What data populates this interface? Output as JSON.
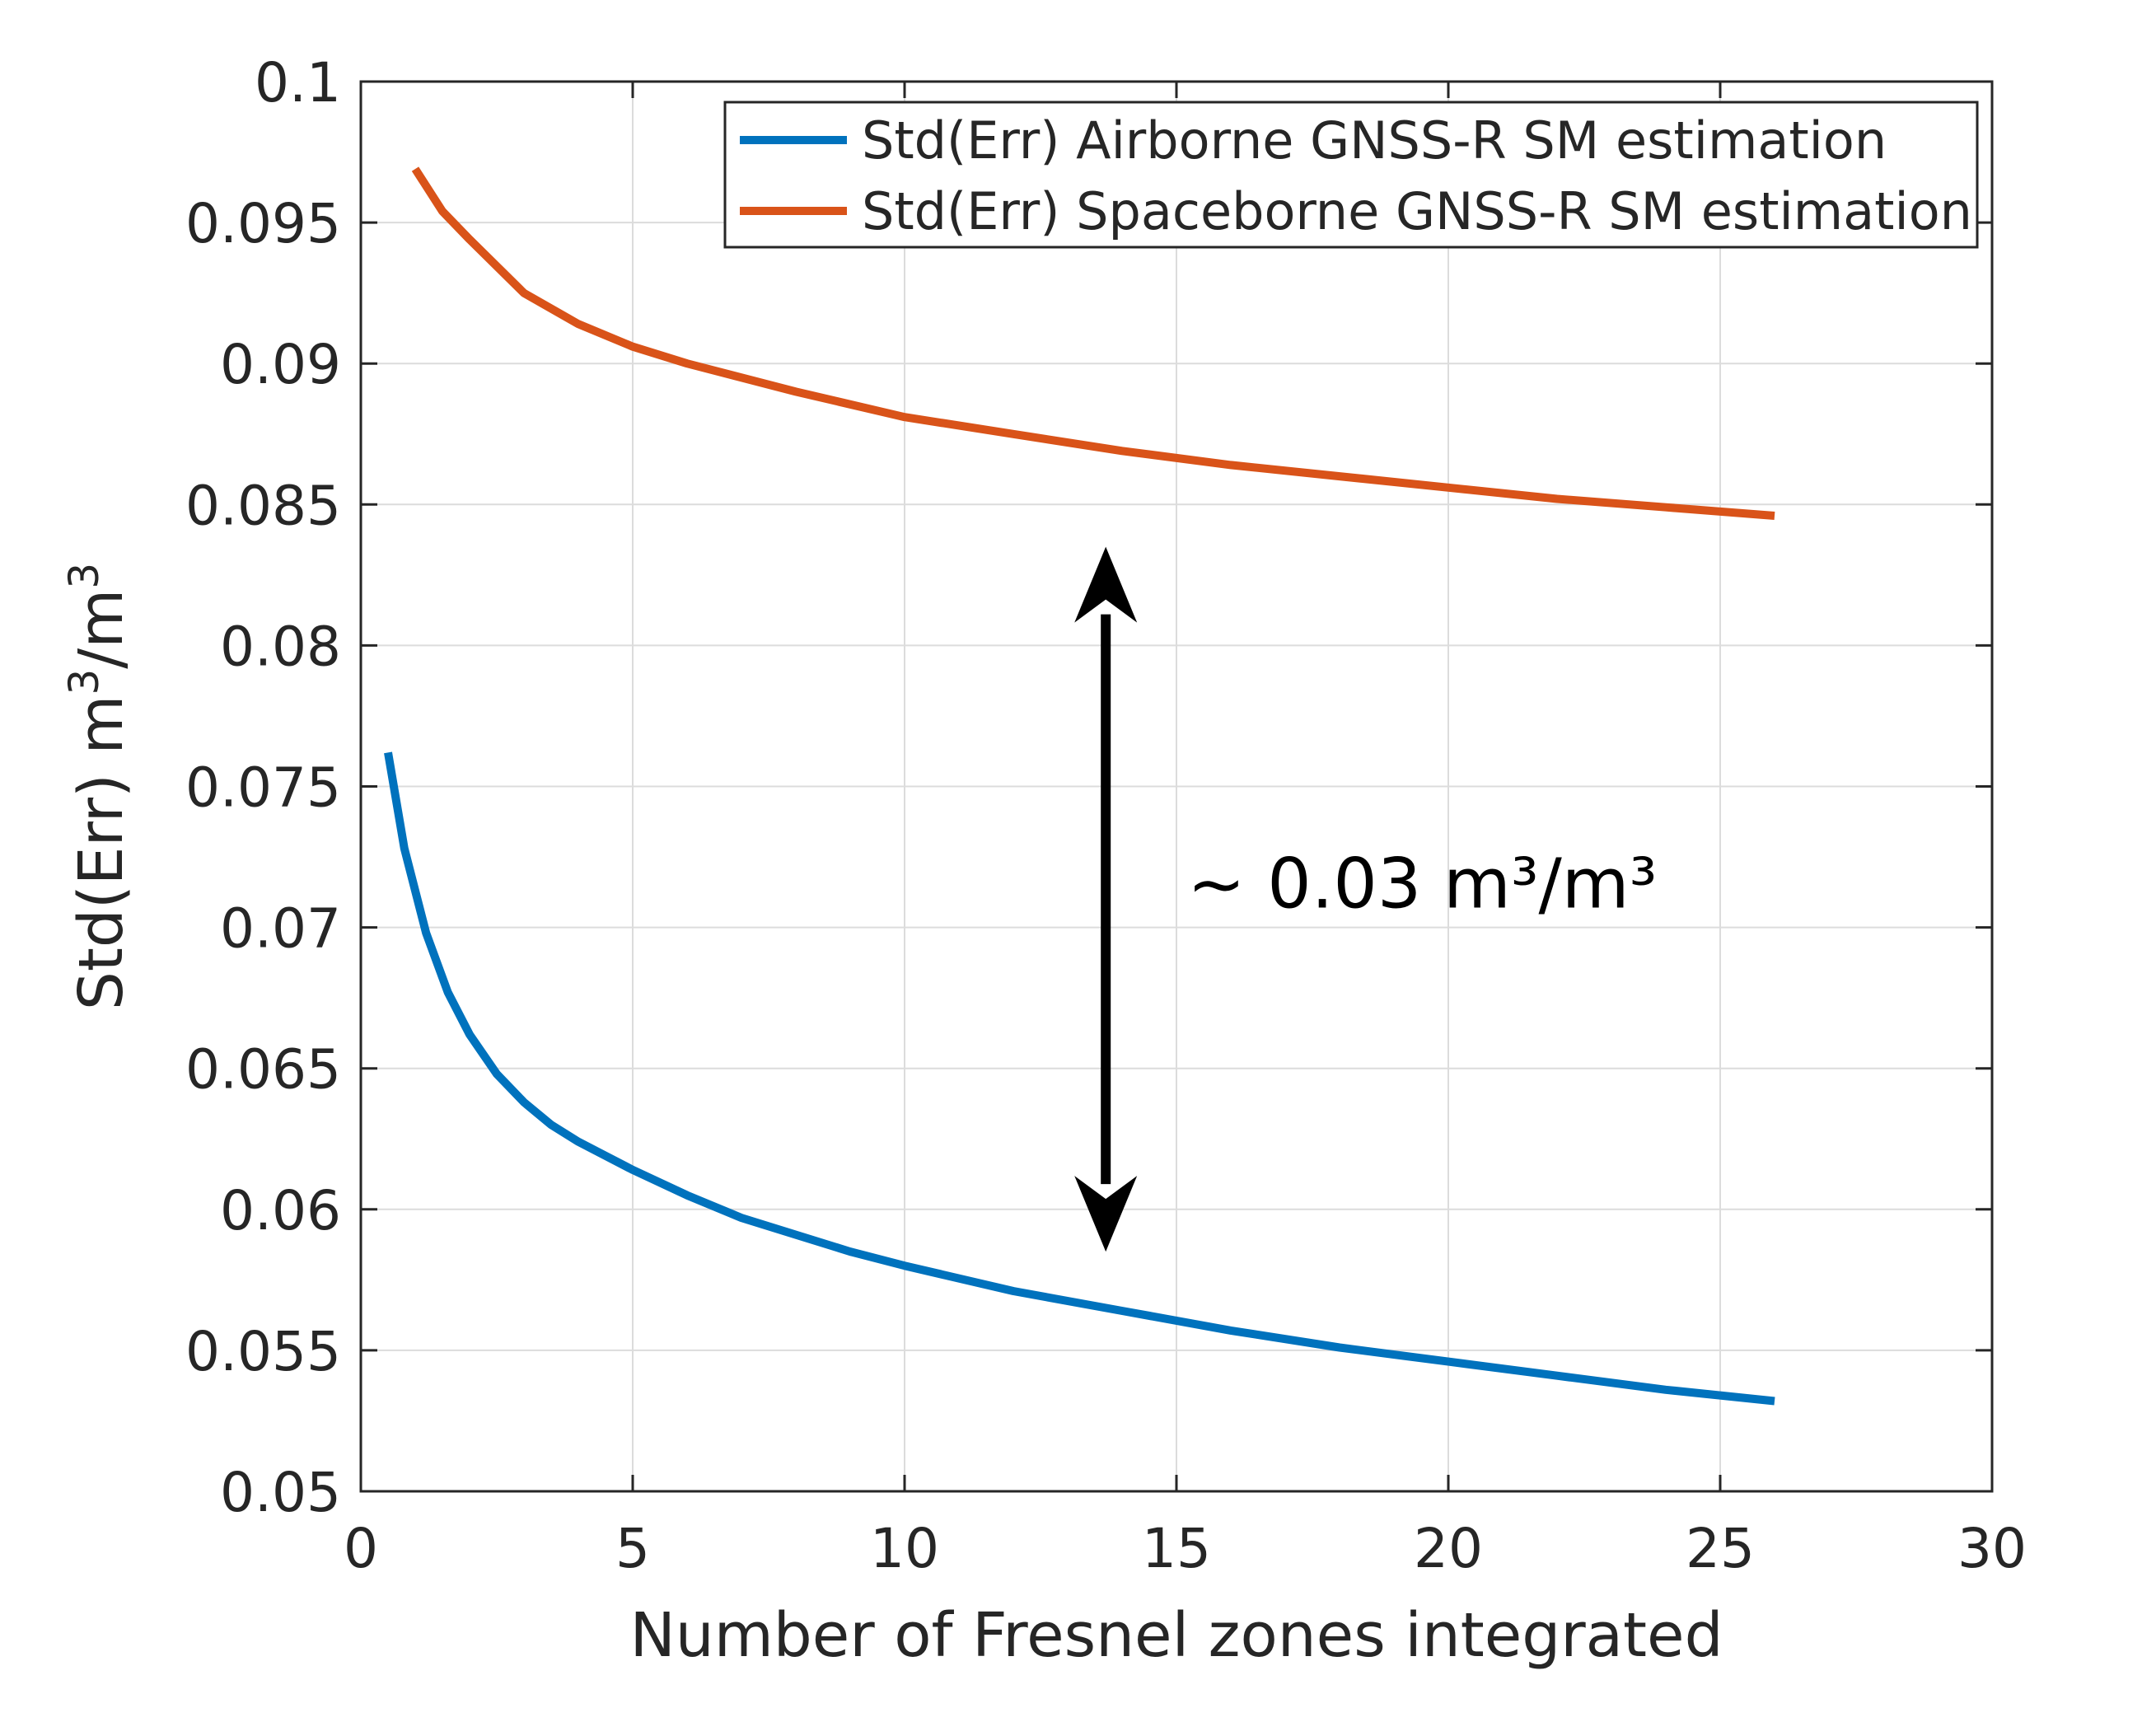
{
  "chart_data": {
    "type": "line",
    "title": "",
    "xlabel": "Number of Fresnel zones integrated",
    "ylabel_main": "Std(Err)  m",
    "ylabel_sup": "3",
    "ylabel_mid": "/m",
    "ylabel_sup2": "3",
    "xlim": [
      0,
      30
    ],
    "ylim": [
      0.05,
      0.1
    ],
    "xticks": [
      0,
      5,
      10,
      15,
      20,
      25,
      30
    ],
    "xtick_labels": [
      "0",
      "5",
      "10",
      "15",
      "20",
      "25",
      "30"
    ],
    "yticks": [
      0.05,
      0.055,
      0.06,
      0.065,
      0.07,
      0.075,
      0.08,
      0.085,
      0.09,
      0.095,
      0.1
    ],
    "ytick_labels": [
      "0.05",
      "0.055",
      "0.06",
      "0.065",
      "0.07",
      "0.075",
      "0.08",
      "0.085",
      "0.09",
      "0.095",
      "0.1"
    ],
    "grid": true,
    "legend_position": "top-right",
    "series": [
      {
        "name": "Std(Err) Airborne GNSS-R SM estimation",
        "color": "#0072BD",
        "x": [
          0.5,
          0.8,
          1.2,
          1.6,
          2,
          2.5,
          3,
          3.5,
          4,
          5,
          6,
          7,
          8,
          9,
          10,
          12,
          14,
          16,
          18,
          20,
          22,
          24,
          26
        ],
        "y": [
          0.0762,
          0.0728,
          0.0698,
          0.0677,
          0.0662,
          0.0648,
          0.0638,
          0.063,
          0.0624,
          0.0614,
          0.0605,
          0.0597,
          0.0591,
          0.0585,
          0.058,
          0.0571,
          0.0564,
          0.0557,
          0.0551,
          0.0546,
          0.0541,
          0.0536,
          0.0532
        ]
      },
      {
        "name": "Std(Err) Spaceborne GNSS-R SM estimation",
        "color": "#D95319",
        "x": [
          1,
          1.5,
          2,
          3,
          4,
          5,
          6,
          8,
          10,
          12,
          14,
          16,
          18,
          20,
          22,
          24,
          26
        ],
        "y": [
          0.0969,
          0.0954,
          0.0944,
          0.0925,
          0.0914,
          0.0906,
          0.09,
          0.089,
          0.0881,
          0.0875,
          0.0869,
          0.0864,
          0.086,
          0.0856,
          0.0852,
          0.0849,
          0.0846
        ]
      }
    ],
    "annotations": [
      {
        "type": "double-arrow",
        "x": 13.7,
        "y_from": 0.0585,
        "y_to": 0.0835
      },
      {
        "type": "text",
        "text": "~ 0.03 m³/m³",
        "x": 15.2,
        "y": 0.0707
      }
    ]
  }
}
